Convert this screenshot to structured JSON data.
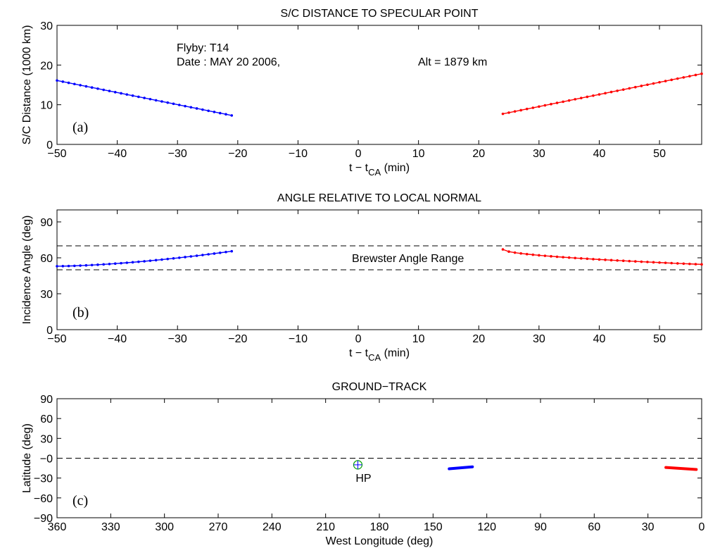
{
  "chart_data": [
    {
      "type": "line",
      "title": "S/C DISTANCE TO SPECULAR POINT",
      "xlabel": "t − t",
      "xlabel_sub": "CA",
      "xlabel_unit": " (min)",
      "ylabel": "S/C Distance (1000 km)",
      "xlim": [
        -50,
        57
      ],
      "ylim": [
        0,
        30
      ],
      "xticks": [
        -50,
        -40,
        -30,
        -20,
        -10,
        0,
        10,
        20,
        30,
        40,
        50
      ],
      "yticks": [
        0,
        10,
        20,
        30
      ],
      "xtick_labels": [
        "−50",
        "−40",
        "−30",
        "−20",
        "−10",
        "0",
        "10",
        "20",
        "30",
        "40",
        "50"
      ],
      "ytick_labels": [
        "0",
        "10",
        "20",
        "30"
      ],
      "panel_label": "(a)",
      "annotations": {
        "flyby": "Flyby: T14",
        "date": "Date : MAY 20 2006,",
        "alt": "Alt = 1879 km"
      },
      "series": [
        {
          "color": "#0000ff",
          "x": [
            -50,
            -21
          ],
          "y": [
            16.1,
            7.3
          ],
          "points": 31
        },
        {
          "color": "#ff0000",
          "x": [
            24,
            57
          ],
          "y": [
            7.7,
            17.8
          ],
          "points": 34
        }
      ]
    },
    {
      "type": "line",
      "title": "ANGLE RELATIVE TO LOCAL NORMAL",
      "xlabel": "t − t",
      "xlabel_sub": "CA",
      "xlabel_unit": " (min)",
      "ylabel": "Incidence Angle (deg)",
      "xlim": [
        -50,
        57
      ],
      "ylim": [
        0,
        100
      ],
      "xticks": [
        -50,
        -40,
        -30,
        -20,
        -10,
        0,
        10,
        20,
        30,
        40,
        50
      ],
      "yticks": [
        0,
        30,
        60,
        90
      ],
      "xtick_labels": [
        "−50",
        "−40",
        "−30",
        "−20",
        "−10",
        "0",
        "10",
        "20",
        "30",
        "40",
        "50"
      ],
      "ytick_labels": [
        "0",
        "30",
        "60",
        "90"
      ],
      "panel_label": "(b)",
      "band_label": "Brewster Angle Range",
      "hlines": [
        50,
        70
      ],
      "series": [
        {
          "color": "#0000ff",
          "x": [
            -50,
            -21
          ],
          "y": [
            53,
            65.5
          ],
          "points": 31,
          "curve": 1.6
        },
        {
          "color": "#ff0000",
          "x": [
            24,
            57
          ],
          "y": [
            67,
            54.5
          ],
          "points": 34,
          "curve": 0.55
        }
      ]
    },
    {
      "type": "line",
      "title": "GROUND−TRACK",
      "xlabel": "West Longitude (deg)",
      "ylabel": "Latitude (deg)",
      "xlim": [
        360,
        0
      ],
      "ylim": [
        -90,
        90
      ],
      "xticks": [
        360,
        330,
        300,
        270,
        240,
        210,
        180,
        150,
        120,
        90,
        60,
        30,
        0
      ],
      "yticks": [
        -90,
        -60,
        -30,
        0,
        30,
        60,
        90
      ],
      "xtick_labels": [
        "360",
        "330",
        "300",
        "270",
        "240",
        "210",
        "180",
        "150",
        "120",
        "90",
        "60",
        "30",
        "0"
      ],
      "ytick_labels": [
        "−90",
        "−60",
        "−30",
        "−0",
        "30",
        "60",
        "90"
      ],
      "panel_label": "(c)",
      "hlines": [
        0
      ],
      "marker_label": "HP",
      "marker": {
        "x": 192,
        "y": -10
      },
      "series": [
        {
          "color": "#0000ff",
          "x": [
            141,
            128
          ],
          "y": [
            -16,
            -13
          ]
        },
        {
          "color": "#ff0000",
          "x": [
            20,
            3
          ],
          "y": [
            -14,
            -17
          ]
        }
      ]
    }
  ]
}
